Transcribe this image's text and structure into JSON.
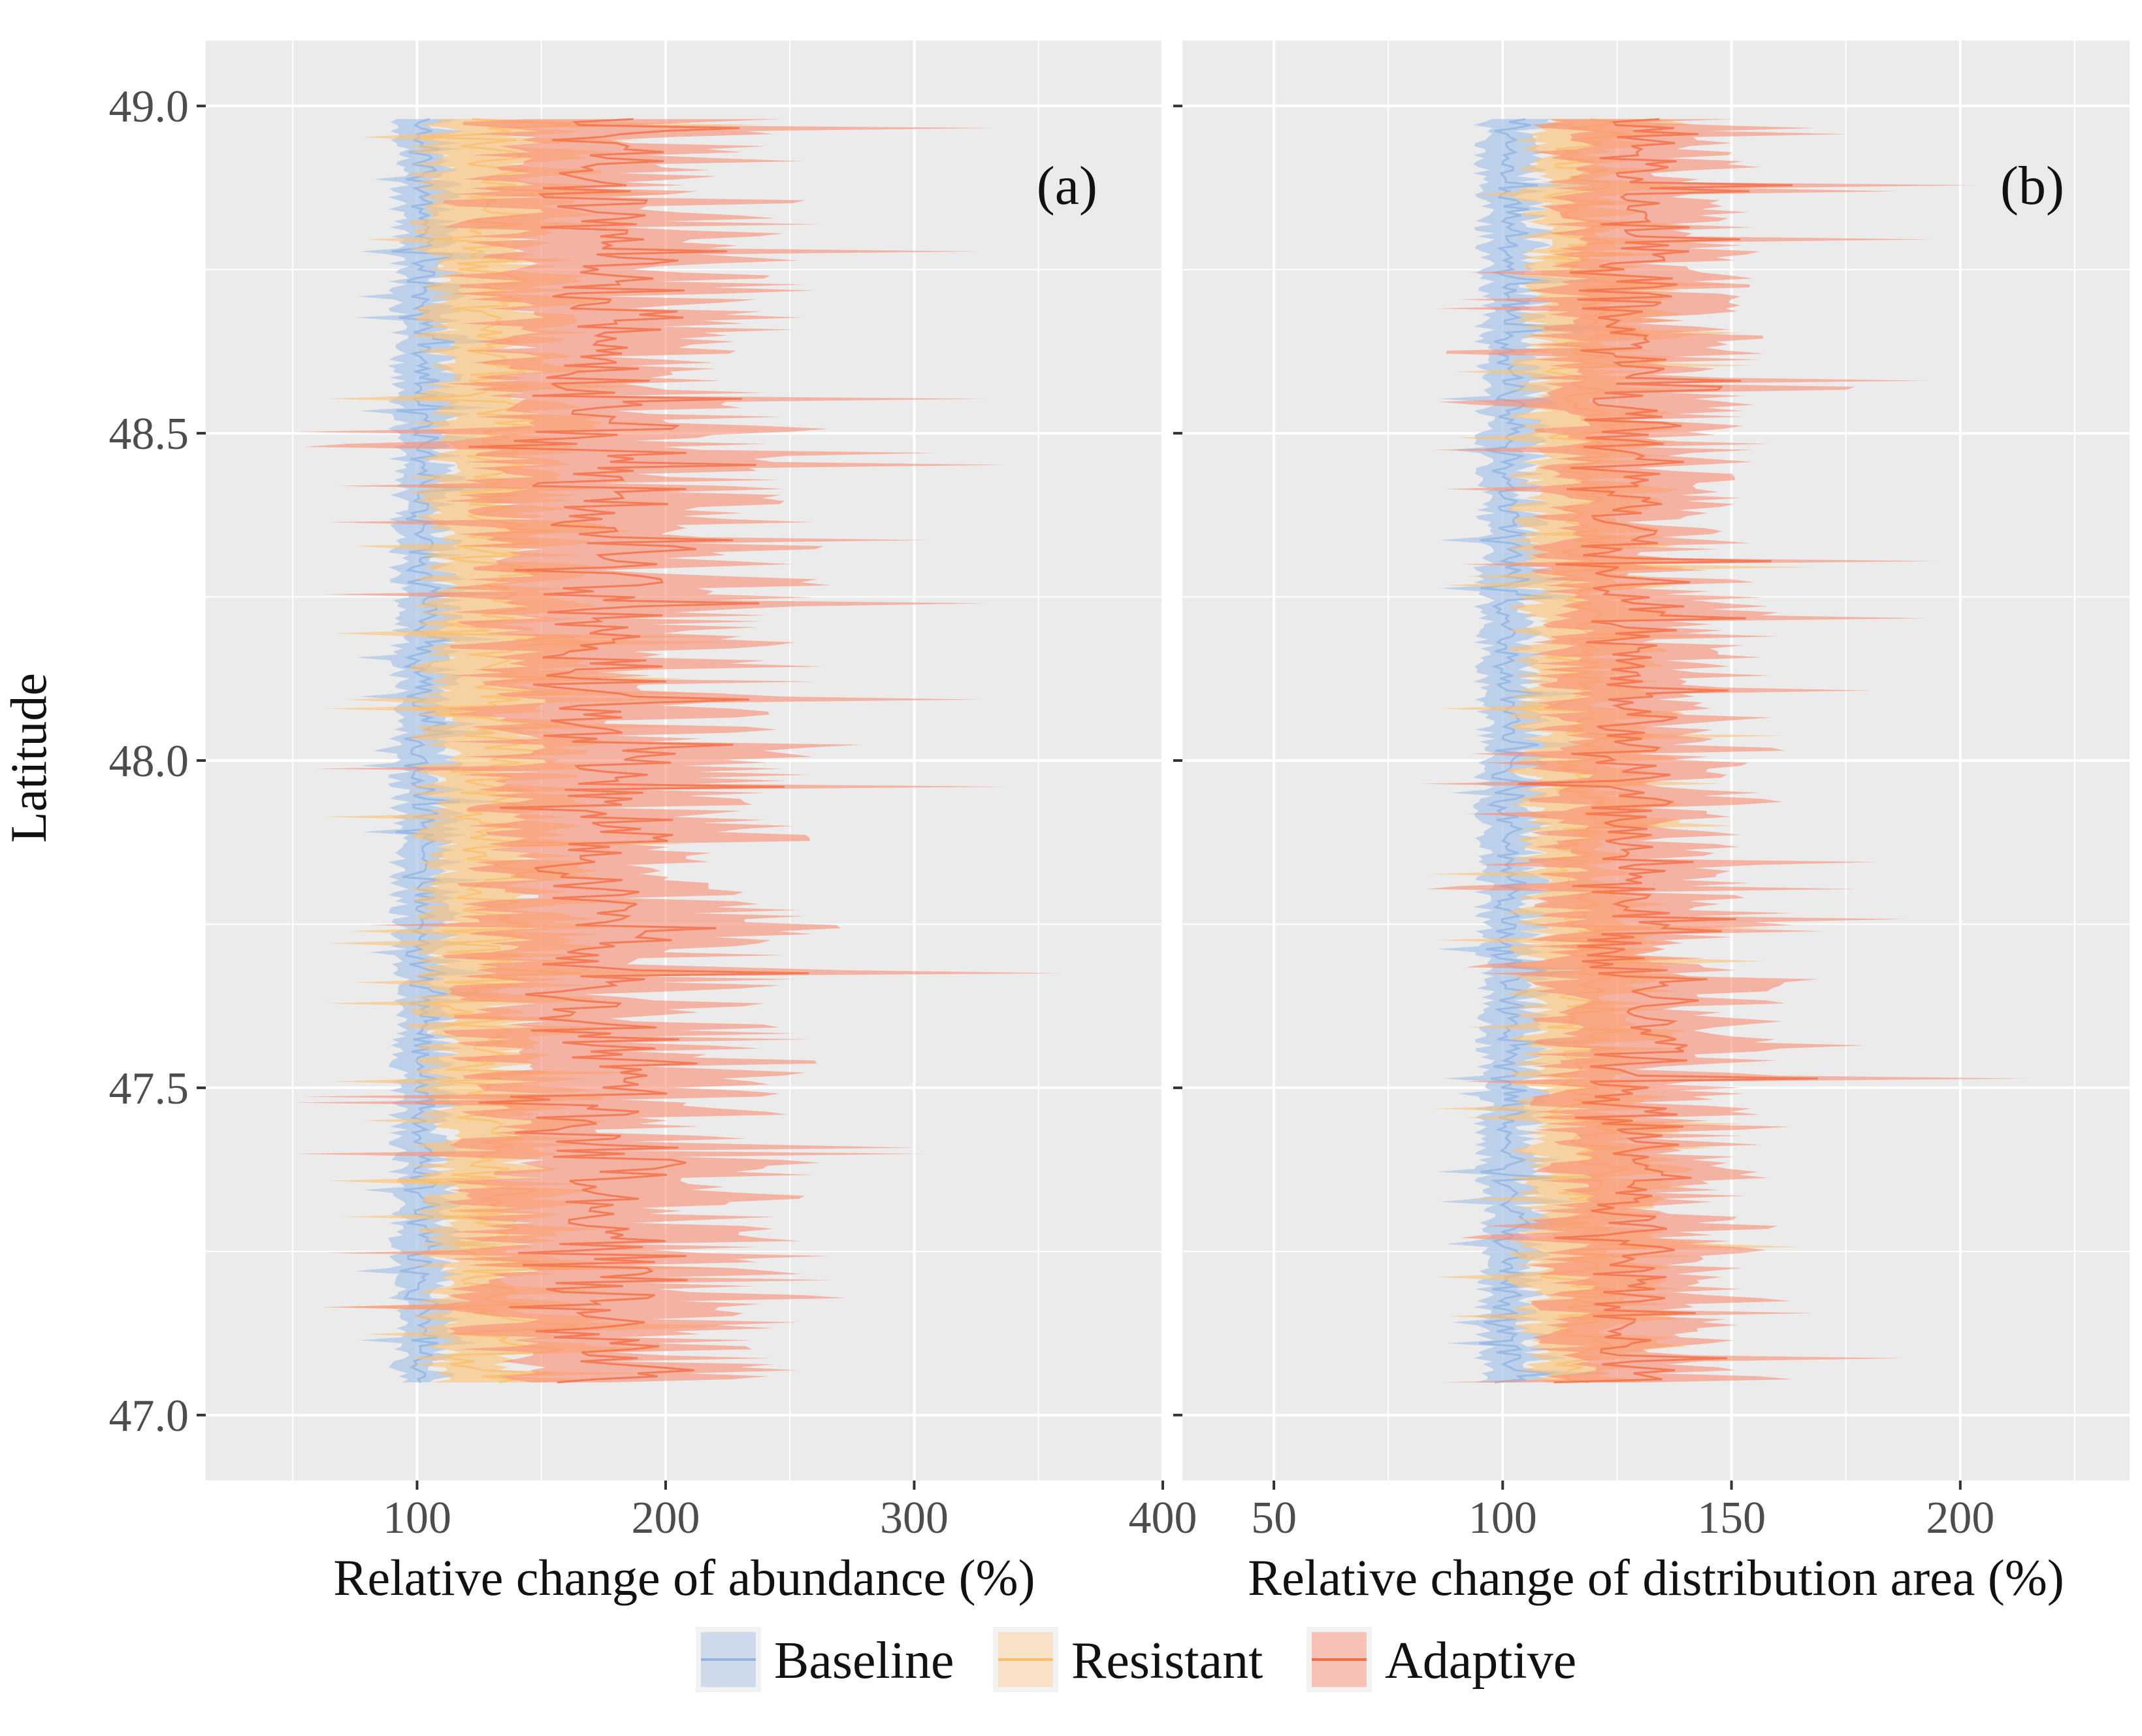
{
  "chart_data": [
    {
      "type": "area",
      "panel_label": "(a)",
      "xlabel": "Relative change of abundance (%)",
      "ylabel": "Latitude",
      "xlim": [
        15,
        400
      ],
      "ylim": [
        46.9,
        49.1
      ],
      "x_ticks": [
        "100",
        "200",
        "300",
        "400"
      ],
      "x_tick_values": [
        100,
        200,
        300,
        400
      ],
      "y_ticks": [
        "47.0",
        "47.5",
        "48.0",
        "48.5",
        "49.0"
      ],
      "y_tick_values": [
        47.0,
        47.5,
        48.0,
        48.5,
        49.0
      ],
      "latitude_range": [
        47.05,
        48.98
      ],
      "series": [
        {
          "name": "Baseline",
          "center": 100,
          "low_min": 70,
          "high_max": 135,
          "spread": 18,
          "bias": 0,
          "seed": 11
        },
        {
          "name": "Resistant",
          "center": 125,
          "low_min": 60,
          "high_max": 240,
          "spread": 45,
          "bias": 15,
          "seed": 23
        },
        {
          "name": "Adaptive",
          "center": 165,
          "low_min": 50,
          "high_max": 385,
          "spread": 85,
          "bias": 35,
          "seed": 37
        }
      ]
    },
    {
      "type": "area",
      "panel_label": "(b)",
      "xlabel": "Relative change of distribution area (%)",
      "ylabel": "",
      "xlim": [
        30,
        237
      ],
      "ylim": [
        46.9,
        49.1
      ],
      "x_ticks": [
        "50",
        "100",
        "150",
        "200"
      ],
      "x_tick_values": [
        50,
        100,
        150,
        200
      ],
      "y_ticks": [
        "47.0",
        "47.5",
        "48.0",
        "48.5",
        "49.0"
      ],
      "y_tick_values": [
        47.0,
        47.5,
        48.0,
        48.5,
        49.0
      ],
      "latitude_range": [
        47.05,
        48.98
      ],
      "series": [
        {
          "name": "Baseline",
          "center": 100,
          "low_min": 75,
          "high_max": 125,
          "spread": 10,
          "bias": 0,
          "seed": 41
        },
        {
          "name": "Resistant",
          "center": 115,
          "low_min": 55,
          "high_max": 200,
          "spread": 22,
          "bias": 8,
          "seed": 53
        },
        {
          "name": "Adaptive",
          "center": 125,
          "low_min": 50,
          "high_max": 237,
          "spread": 30,
          "bias": 14,
          "seed": 67
        }
      ]
    }
  ],
  "legend": {
    "items": [
      {
        "label": "Baseline",
        "fill": "#aec7e8",
        "line": "#8fb4e3"
      },
      {
        "label": "Resistant",
        "fill": "#fdd49e",
        "line": "#fbbf6a"
      },
      {
        "label": "Adaptive",
        "fill": "#fb9a83",
        "line": "#f46d43"
      }
    ]
  },
  "colors": {
    "panel_bg": "#ebebeb",
    "grid": "#ffffff",
    "Baseline": "#aec7e8",
    "Resistant": "#fdc171",
    "Adaptive": "#fa8c72"
  }
}
